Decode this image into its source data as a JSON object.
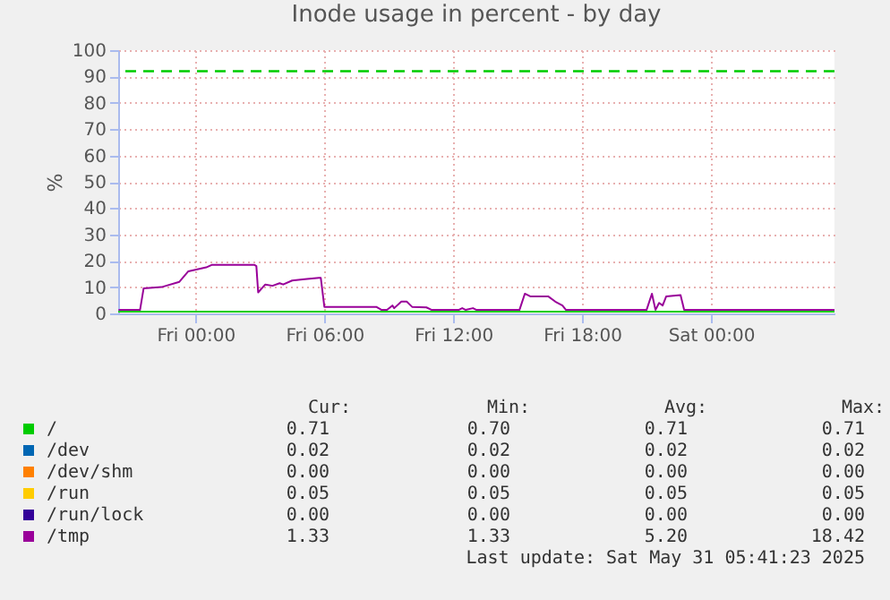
{
  "chart_data": {
    "type": "line",
    "title": "Inode usage in percent - by day",
    "ylabel": "%",
    "xlim": [
      "2025-05-29T20:24",
      "2025-05-31T05:45"
    ],
    "xticks": [
      {
        "value": "2025-05-30T00:00",
        "label": "Fri 00:00"
      },
      {
        "value": "2025-05-30T06:00",
        "label": "Fri 06:00"
      },
      {
        "value": "2025-05-30T12:00",
        "label": "Fri 12:00"
      },
      {
        "value": "2025-05-30T18:00",
        "label": "Fri 18:00"
      },
      {
        "value": "2025-05-31T00:00",
        "label": "Sat 00:00"
      }
    ],
    "ylim": [
      0,
      100
    ],
    "yticks": [
      0,
      10,
      20,
      30,
      40,
      50,
      60,
      70,
      80,
      90,
      100
    ],
    "grid": true,
    "legend": "bottom",
    "marker": "none",
    "line_style": "solid",
    "ref_lines": [
      {
        "axis": "y",
        "value": 92,
        "color": "#00cc00",
        "line_style": "dashed"
      }
    ],
    "series": [
      {
        "name": "/",
        "color": "#00cc00",
        "x": [
          "2025-05-29T20:24",
          "2025-05-31T05:45"
        ],
        "values": [
          0.71,
          0.71
        ]
      },
      {
        "name": "/dev",
        "color": "#0066b3",
        "values": [
          null,
          null
        ]
      },
      {
        "name": "/dev/shm",
        "color": "#ff8000",
        "values": [
          null,
          null
        ]
      },
      {
        "name": "/run",
        "color": "#ffcc00",
        "values": [
          null,
          null
        ]
      },
      {
        "name": "/run/lock",
        "color": "#330099",
        "values": [
          null,
          null
        ]
      },
      {
        "name": "/tmp",
        "color": "#990099",
        "x": [
          "2025-05-29T20:25",
          "2025-05-29T21:25",
          "2025-05-29T21:35",
          "2025-05-29T22:25",
          "2025-05-29T23:15",
          "2025-05-29T23:40",
          "2025-05-30T00:30",
          "2025-05-30T00:45",
          "2025-05-30T02:45",
          "2025-05-30T02:50",
          "2025-05-30T02:55",
          "2025-05-30T03:15",
          "2025-05-30T03:35",
          "2025-05-30T03:55",
          "2025-05-30T04:05",
          "2025-05-30T04:30",
          "2025-05-30T05:05",
          "2025-05-30T05:45",
          "2025-05-30T05:50",
          "2025-05-30T06:00",
          "2025-05-30T08:25",
          "2025-05-30T08:40",
          "2025-05-30T08:55",
          "2025-05-30T09:10",
          "2025-05-30T09:15",
          "2025-05-30T09:35",
          "2025-05-30T09:50",
          "2025-05-30T10:05",
          "2025-05-30T10:45",
          "2025-05-30T11:00",
          "2025-05-30T12:15",
          "2025-05-30T12:25",
          "2025-05-30T12:35",
          "2025-05-30T12:55",
          "2025-05-30T13:05",
          "2025-05-30T15:05",
          "2025-05-30T15:20",
          "2025-05-30T15:35",
          "2025-05-30T16:25",
          "2025-05-30T16:45",
          "2025-05-30T17:05",
          "2025-05-30T17:15",
          "2025-05-30T21:00",
          "2025-05-30T21:15",
          "2025-05-30T21:25",
          "2025-05-30T21:35",
          "2025-05-30T21:45",
          "2025-05-30T21:55",
          "2025-05-30T22:35",
          "2025-05-30T22:45",
          "2025-05-31T05:45"
        ],
        "values": [
          1.33,
          1.33,
          9.5,
          10,
          12,
          16,
          17.5,
          18.42,
          18.42,
          18.0,
          8,
          11,
          10.5,
          11.5,
          11,
          12.5,
          13,
          13.5,
          13.5,
          2.5,
          2.5,
          1.33,
          1.33,
          3,
          2,
          4.5,
          4.5,
          2.5,
          2.3,
          1.33,
          1.33,
          2,
          1.33,
          2,
          1.33,
          1.33,
          7.5,
          6.5,
          6.5,
          4.5,
          3,
          1.33,
          1.33,
          7.5,
          1.33,
          4,
          3,
          6.5,
          7,
          1.33,
          1.33
        ]
      }
    ],
    "annotations": [
      "Cur:",
      "Min:",
      "Avg:",
      "Max:",
      "0.71",
      "0.70",
      "0.71",
      "0.71",
      "0.02",
      "0.02",
      "0.02",
      "0.02",
      "0.00",
      "0.00",
      "0.00",
      "0.00",
      "0.05",
      "0.05",
      "0.05",
      "0.05",
      "0.00",
      "0.00",
      "0.00",
      "0.00",
      "1.33",
      "1.33",
      "5.20",
      "18.42",
      "Last update: Sat May 31 05:41:23 2025"
    ]
  }
}
